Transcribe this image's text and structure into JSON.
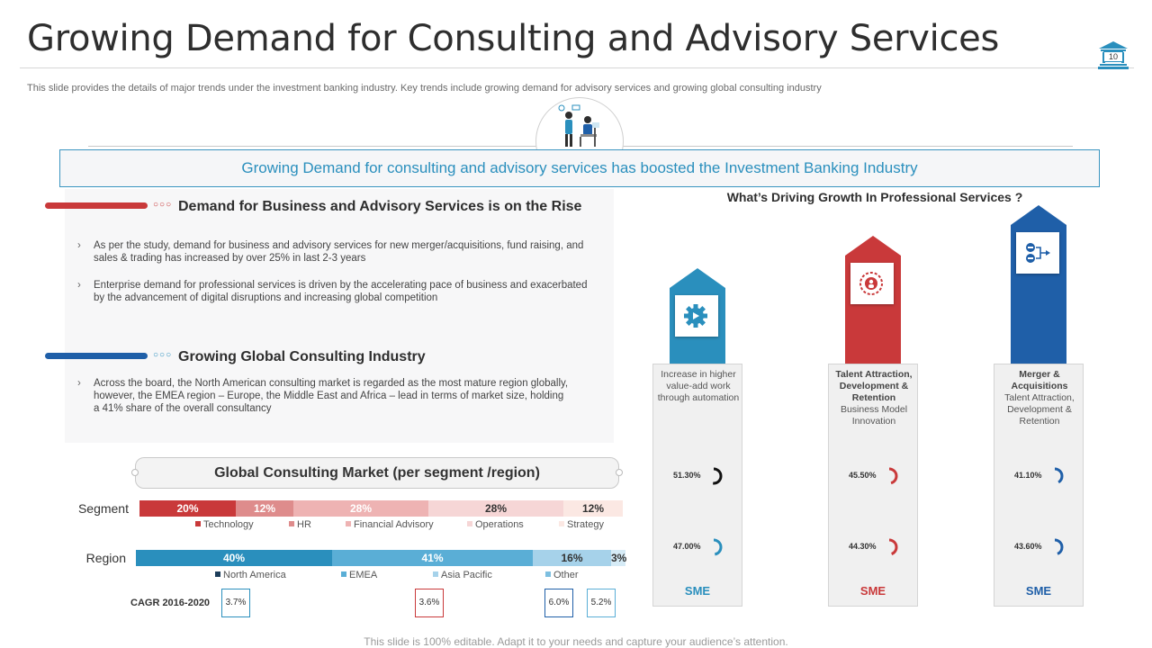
{
  "title": "Growing Demand for Consulting and Advisory Services",
  "page_number": "10",
  "subtitle": "This slide provides the details of major trends under the investment banking industry. Key trends include growing demand for advisory services and growing global consulting industry",
  "banner": "Growing Demand for consulting and advisory services has boosted the Investment Banking Industry",
  "sections": [
    {
      "heading": "Demand for Business and Advisory Services is on the Rise",
      "color": "#c9393a",
      "bullets": [
        "As per the study, demand for business and advisory services for new merger/acquisitions, fund raising, and sales & trading has increased by over 25% in last 2-3 years",
        "Enterprise demand for professional services is driven by the accelerating pace of business and exacerbated by the advancement of digital disruptions and increasing global competition"
      ]
    },
    {
      "heading": "Growing Global Consulting Industry",
      "color": "#1f5fa8",
      "bullets": [
        "Across the board, the North American consulting market is regarded as the most mature region globally, however, the EMEA  region – Europe, the Middle East and Africa – lead in terms of market size, holding a 41% share of the overall consultancy"
      ]
    }
  ],
  "market": {
    "title": "Global Consulting Market (per segment /region)",
    "segment": {
      "label": "Segment",
      "parts": [
        {
          "value": "20%",
          "pct": 20,
          "color": "#c9393a",
          "text_color": "#ffffff",
          "legend": "Technology"
        },
        {
          "value": "12%",
          "pct": 12,
          "color": "#de8c8c",
          "text_color": "#ffffff",
          "legend": "HR"
        },
        {
          "value": "28%",
          "pct": 28,
          "color": "#eeb3b3",
          "text_color": "#ffffff",
          "legend": "Financial Advisory"
        },
        {
          "value": "28%",
          "pct": 28,
          "color": "#f6d6d6",
          "text_color": "#333333",
          "legend": "Operations"
        },
        {
          "value": "12%",
          "pct": 12,
          "color": "#fbe8e3",
          "text_color": "#333333",
          "legend": "Strategy"
        }
      ]
    },
    "region": {
      "label": "Region",
      "parts": [
        {
          "value": "40%",
          "pct": 40,
          "color": "#2a8fbd",
          "text_color": "#ffffff",
          "legend": "North America",
          "legend_color": "#1c3d5a"
        },
        {
          "value": "41%",
          "pct": 41,
          "color": "#5aaed6",
          "text_color": "#ffffff",
          "legend": "EMEA",
          "legend_color": "#5aaed6"
        },
        {
          "value": "16%",
          "pct": 16,
          "color": "#a6d2ea",
          "text_color": "#333333",
          "legend": "Asia Pacific",
          "legend_color": "#a6d2ea"
        },
        {
          "value": "3%",
          "pct": 3,
          "color": "#d6ebf6",
          "text_color": "#333333",
          "legend": "Other",
          "legend_color": "#7dbfe0"
        }
      ]
    },
    "cagr": {
      "label": "CAGR 2016-2020",
      "values": [
        {
          "value": "3.7%",
          "color": "#2a8fbd"
        },
        {
          "value": "3.6%",
          "color": "#c9393a"
        },
        {
          "value": "6.0%",
          "color": "#1f5fa8"
        },
        {
          "value": "5.2%",
          "color": "#5aaed6"
        }
      ]
    }
  },
  "growth": {
    "title": "What’s Driving Growth In Professional Services ?",
    "columns": [
      {
        "color": "#2a8fbd",
        "icon": "gear-play-icon",
        "text_bold": "",
        "text": "Increase in higher value-add work through automation",
        "metrics": [
          {
            "value": "51.30%",
            "fraction": 0.513,
            "color": "#111111"
          },
          {
            "value": "47.00%",
            "fraction": 0.47,
            "color": "#2a8fbd"
          }
        ],
        "footer": "SME"
      },
      {
        "color": "#c9393a",
        "icon": "talent-gear-icon",
        "text_bold": "Talent Attraction, Development & Retention",
        "text": "Business Model Innovation",
        "metrics": [
          {
            "value": "45.50%",
            "fraction": 0.455,
            "color": "#c9393a"
          },
          {
            "value": "44.30%",
            "fraction": 0.443,
            "color": "#c9393a"
          }
        ],
        "footer": "SME"
      },
      {
        "color": "#1f5fa8",
        "icon": "network-flow-icon",
        "text_bold": "Merger & Acquisitions",
        "text": "Talent Attraction, Development & Retention",
        "metrics": [
          {
            "value": "41.10%",
            "fraction": 0.411,
            "color": "#1f5fa8"
          },
          {
            "value": "43.60%",
            "fraction": 0.436,
            "color": "#1f5fa8"
          }
        ],
        "footer": "SME"
      }
    ]
  },
  "footer": "This slide is 100% editable. Adapt it to your needs and capture your audience’s attention."
}
